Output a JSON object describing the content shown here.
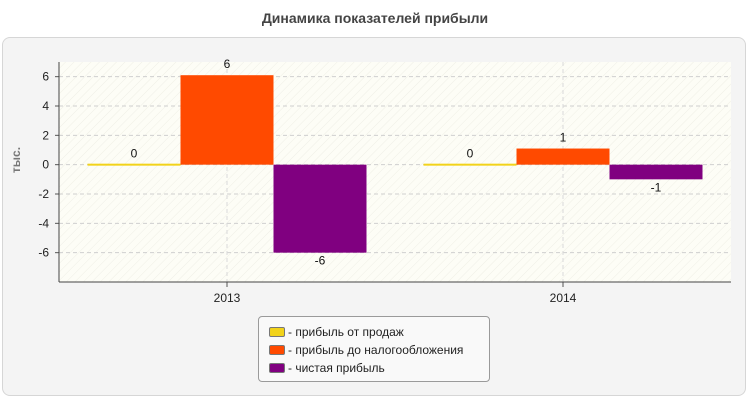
{
  "chart_data": {
    "type": "bar",
    "title": "Динамика показателей прибыли",
    "ylabel": "тыс.",
    "xlabel": "",
    "categories": [
      "2013",
      "2014"
    ],
    "ylim": [
      -8,
      7
    ],
    "yticks": [
      6,
      4,
      2,
      0,
      -2,
      -4,
      -6
    ],
    "grid": true,
    "legend_position": "bottom-center",
    "series": [
      {
        "name": "прибыль от продаж",
        "legend_label": "- прибыль от продаж",
        "color": "#f2d31a",
        "values": [
          0,
          0
        ],
        "labels": [
          "0",
          "0"
        ]
      },
      {
        "name": "прибыль до налогообложения",
        "legend_label": "- прибыль до налогообложения",
        "color": "#ff4a00",
        "values": [
          6.1,
          1.1
        ],
        "labels": [
          "6",
          "1"
        ]
      },
      {
        "name": "чистая прибыль",
        "legend_label": "- чистая прибыль",
        "color": "#800080",
        "values": [
          -6.0,
          -1.0
        ],
        "labels": [
          "-6",
          "-1"
        ]
      }
    ]
  }
}
